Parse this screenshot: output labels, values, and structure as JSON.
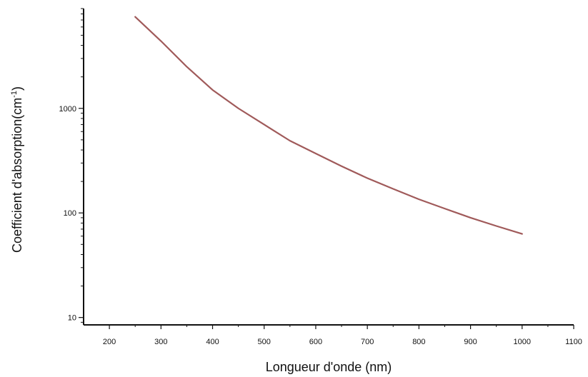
{
  "chart_data": {
    "type": "line",
    "title": "",
    "xlabel": "Longueur d'onde (nm)",
    "ylabel_main": "Coefficient d'absorption(cm",
    "ylabel_superscript": "-1",
    "ylabel_close": ")",
    "ylabel": "Coefficient d'absorption(cm-1)",
    "x_scale": "linear",
    "y_scale": "log",
    "xlim": [
      150,
      1100
    ],
    "ylim": [
      8.5,
      9000
    ],
    "grid": false,
    "legend": "none",
    "x_ticks": [
      {
        "value": 200,
        "label": "200"
      },
      {
        "value": 300,
        "label": "300"
      },
      {
        "value": 400,
        "label": "400"
      },
      {
        "value": 500,
        "label": "500"
      },
      {
        "value": 600,
        "label": "600"
      },
      {
        "value": 700,
        "label": "700"
      },
      {
        "value": 800,
        "label": "800"
      },
      {
        "value": 900,
        "label": "900"
      },
      {
        "value": 1000,
        "label": "1000"
      },
      {
        "value": 1100,
        "label": "1100"
      }
    ],
    "y_ticks": [
      {
        "value": 10,
        "label": "10"
      },
      {
        "value": 100,
        "label": "100"
      },
      {
        "value": 1000,
        "label": "1000"
      }
    ],
    "series": [
      {
        "color": "#a05a5a",
        "x": [
          250,
          300,
          350,
          400,
          450,
          500,
          550,
          600,
          650,
          700,
          750,
          800,
          850,
          900,
          950,
          1000
        ],
        "y": [
          7500,
          4400,
          2500,
          1500,
          1000,
          700,
          490,
          370,
          280,
          215,
          170,
          135,
          110,
          90,
          75,
          63
        ]
      }
    ]
  }
}
